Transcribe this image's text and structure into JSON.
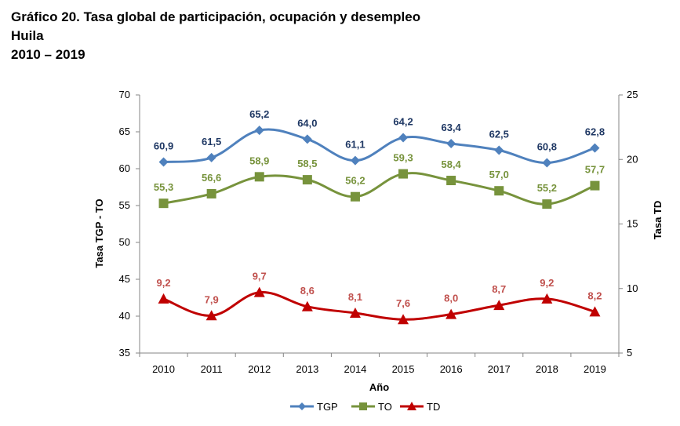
{
  "title": {
    "line1": "Gráfico 20. Tasa global de participación, ocupación y desempleo",
    "line2": "Huila",
    "line3": "2010 – 2019"
  },
  "chart_data": {
    "type": "line",
    "categories": [
      "2010",
      "2011",
      "2012",
      "2013",
      "2014",
      "2015",
      "2016",
      "2017",
      "2018",
      "2019"
    ],
    "xlabel": "Año",
    "ylabel_left": "Tasa TGP - TO",
    "ylabel_right": "Tasa TD",
    "ylim_left": [
      35,
      70
    ],
    "yticks_left": [
      35,
      40,
      45,
      50,
      55,
      60,
      65,
      70
    ],
    "ylim_right": [
      5,
      25
    ],
    "yticks_right": [
      5,
      10,
      15,
      20,
      25
    ],
    "grid": false,
    "legend_position": "bottom",
    "series": [
      {
        "name": "TGP",
        "axis": "left",
        "marker": "diamond",
        "color": "#4F81BD",
        "label_color": "#1F3864",
        "values": [
          60.9,
          61.5,
          65.2,
          64.0,
          61.1,
          64.2,
          63.4,
          62.5,
          60.8,
          62.8
        ],
        "labels": [
          "60,9",
          "61,5",
          "65,2",
          "64,0",
          "61,1",
          "64,2",
          "63,4",
          "62,5",
          "60,8",
          "62,8"
        ]
      },
      {
        "name": "TO",
        "axis": "left",
        "marker": "square",
        "color": "#77933C",
        "label_color": "#77933C",
        "values": [
          55.3,
          56.6,
          58.9,
          58.5,
          56.2,
          59.3,
          58.4,
          57.0,
          55.2,
          57.7
        ],
        "labels": [
          "55,3",
          "56,6",
          "58,9",
          "58,5",
          "56,2",
          "59,3",
          "58,4",
          "57,0",
          "55,2",
          "57,7"
        ]
      },
      {
        "name": "TD",
        "axis": "right",
        "marker": "triangle",
        "color": "#C00000",
        "label_color": "#C0504D",
        "values": [
          9.2,
          7.9,
          9.7,
          8.6,
          8.1,
          7.6,
          8.0,
          8.7,
          9.2,
          8.2
        ],
        "labels": [
          "9,2",
          "7,9",
          "9,7",
          "8,6",
          "8,1",
          "7,6",
          "8,0",
          "8,7",
          "9,2",
          "8,2"
        ]
      }
    ]
  }
}
